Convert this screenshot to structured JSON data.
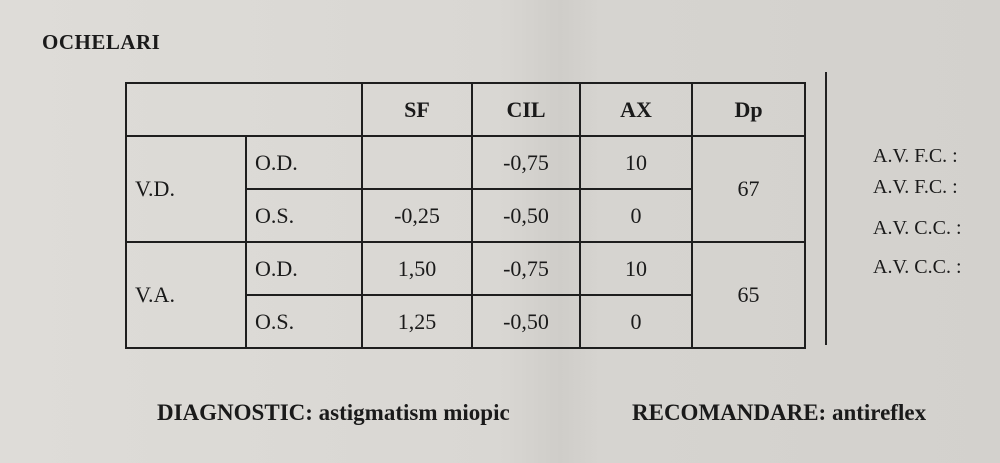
{
  "title": "OCHELARI",
  "table": {
    "headers": [
      "",
      "SF",
      "CIL",
      "AX",
      "Dp"
    ],
    "rows": [
      {
        "group": "V.D.",
        "eye": "O.D.",
        "sf": "",
        "cil": "-0,75",
        "ax": "10",
        "dp": "67"
      },
      {
        "group": "",
        "eye": "O.S.",
        "sf": "-0,25",
        "cil": "-0,50",
        "ax": "0",
        "dp": ""
      },
      {
        "group": "V.A.",
        "eye": "O.D.",
        "sf": "1,50",
        "cil": "-0,75",
        "ax": "10",
        "dp": "65"
      },
      {
        "group": "",
        "eye": "O.S.",
        "sf": "1,25",
        "cil": "-0,50",
        "ax": "0",
        "dp": ""
      }
    ]
  },
  "acuity_labels": [
    "A.V. F.C. :",
    "A.V. F.C. :",
    "A.V. C.C. :",
    "A.V. C.C. :"
  ],
  "diagnostic": {
    "label": "DIAGNOSTIC:",
    "value": "astigmatism miopic"
  },
  "recommendation": {
    "label": "RECOMANDARE:",
    "value": "antireflex"
  }
}
